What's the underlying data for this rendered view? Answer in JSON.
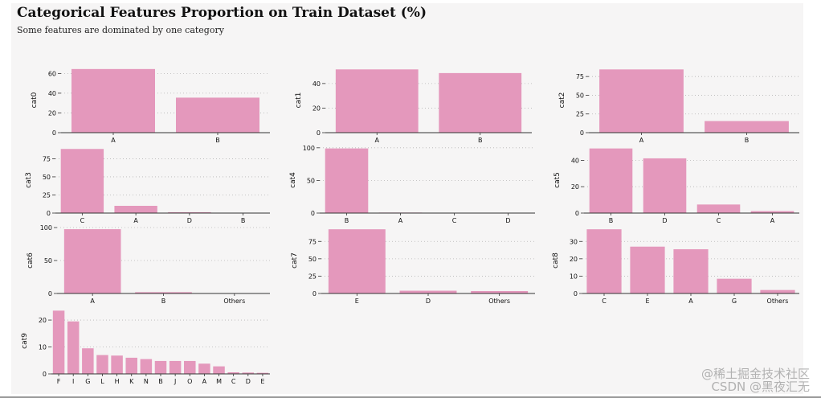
{
  "header": {
    "title": "Categorical Features Proportion on Train Dataset (%)",
    "subtitle": "Some features are dominated by one category"
  },
  "watermark": {
    "line1": "@稀土掘金技术社区",
    "line2": "CSDN @黑夜汇无"
  },
  "colors": {
    "bar": "#e498bc",
    "panel": "#f6f5f5",
    "axis": "#333333",
    "grid": "#b5b5b5",
    "text": "#111111"
  },
  "chart_data": [
    {
      "type": "bar",
      "ylabel": "cat0",
      "categories": [
        "A",
        "B"
      ],
      "values": [
        64.5,
        35.5
      ],
      "yticks": [
        0,
        20,
        40,
        60
      ],
      "ylim": [
        0,
        66
      ],
      "grid": "horizontal-dotted"
    },
    {
      "type": "bar",
      "ylabel": "cat1",
      "categories": [
        "A",
        "B"
      ],
      "values": [
        51.5,
        48.5
      ],
      "yticks": [
        0,
        20,
        40
      ],
      "ylim": [
        0,
        53
      ],
      "grid": "horizontal-dotted"
    },
    {
      "type": "bar",
      "ylabel": "cat2",
      "categories": [
        "A",
        "B"
      ],
      "values": [
        84.5,
        15.5
      ],
      "yticks": [
        0,
        25,
        50,
        75
      ],
      "ylim": [
        0,
        87
      ],
      "grid": "horizontal-dotted"
    },
    {
      "type": "bar",
      "ylabel": "cat3",
      "categories": [
        "C",
        "A",
        "D",
        "B"
      ],
      "values": [
        88.5,
        10.0,
        1.2,
        0.3
      ],
      "yticks": [
        0,
        25,
        50,
        75
      ],
      "ylim": [
        0,
        91
      ],
      "grid": "horizontal-dotted"
    },
    {
      "type": "bar",
      "ylabel": "cat4",
      "categories": [
        "B",
        "A",
        "C",
        "D"
      ],
      "values": [
        99.0,
        0.8,
        0.1,
        0.1
      ],
      "yticks": [
        0,
        50,
        100
      ],
      "ylim": [
        0,
        101
      ],
      "grid": "horizontal-dotted"
    },
    {
      "type": "bar",
      "ylabel": "cat5",
      "categories": [
        "B",
        "D",
        "C",
        "A"
      ],
      "values": [
        49.0,
        41.5,
        6.5,
        1.5
      ],
      "yticks": [
        0,
        20,
        40
      ],
      "ylim": [
        0,
        50
      ],
      "grid": "horizontal-dotted"
    },
    {
      "type": "bar",
      "ylabel": "cat6",
      "categories": [
        "A",
        "B",
        "Others"
      ],
      "values": [
        97.5,
        2.0,
        0.5
      ],
      "yticks": [
        0,
        50,
        100
      ],
      "ylim": [
        0,
        100
      ],
      "grid": "horizontal-dotted"
    },
    {
      "type": "bar",
      "ylabel": "cat7",
      "categories": [
        "E",
        "D",
        "Others"
      ],
      "values": [
        92.5,
        4.0,
        3.5
      ],
      "yticks": [
        0,
        25,
        50,
        75
      ],
      "ylim": [
        0,
        95
      ],
      "grid": "horizontal-dotted"
    },
    {
      "type": "bar",
      "ylabel": "cat8",
      "categories": [
        "C",
        "E",
        "A",
        "G",
        "Others"
      ],
      "values": [
        37.0,
        27.0,
        25.5,
        8.5,
        2.0
      ],
      "yticks": [
        0,
        10,
        20,
        30
      ],
      "ylim": [
        0,
        38
      ],
      "grid": "horizontal-dotted"
    },
    {
      "type": "bar",
      "ylabel": "cat9",
      "categories": [
        "F",
        "I",
        "G",
        "L",
        "H",
        "K",
        "N",
        "B",
        "J",
        "O",
        "A",
        "M",
        "C",
        "D",
        "E"
      ],
      "values": [
        23.5,
        19.5,
        9.5,
        7.0,
        6.8,
        6.0,
        5.5,
        4.8,
        4.8,
        4.8,
        3.8,
        2.8,
        0.6,
        0.5,
        0.4
      ],
      "yticks": [
        0,
        10,
        20
      ],
      "ylim": [
        0,
        24.5
      ],
      "grid": "horizontal-dotted"
    }
  ]
}
